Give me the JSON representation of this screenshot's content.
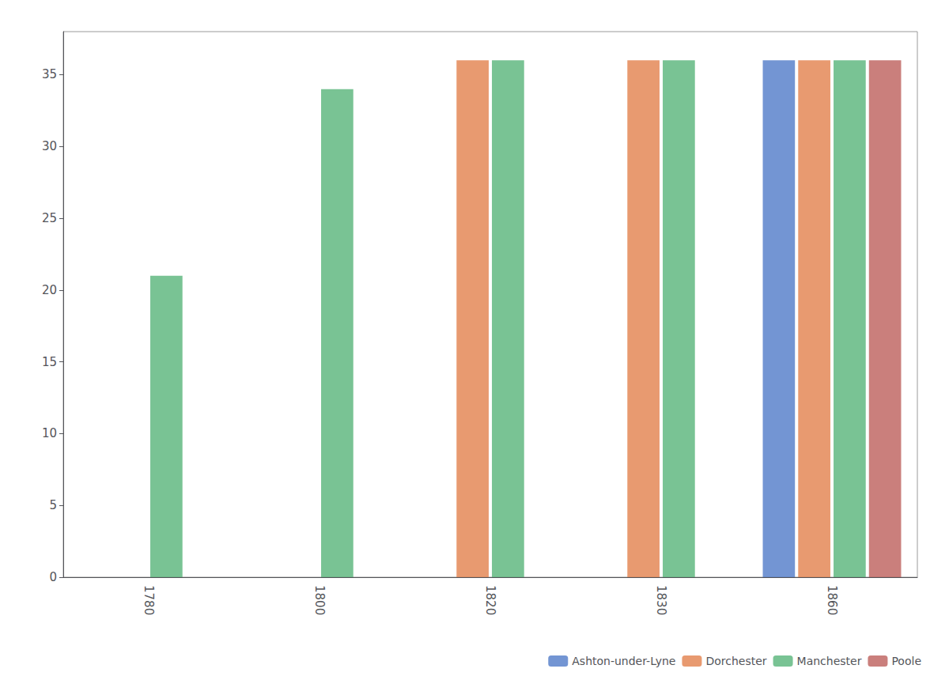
{
  "chart_data": {
    "type": "bar",
    "categories": [
      "1780",
      "1800",
      "1820",
      "1830",
      "1860"
    ],
    "series": [
      {
        "name": "Ashton-under-Lyne",
        "color": "#4472C4",
        "values": [
          0,
          0,
          0,
          0,
          36
        ]
      },
      {
        "name": "Dorchester",
        "color": "#E07840",
        "values": [
          0,
          0,
          36,
          36,
          36
        ]
      },
      {
        "name": "Manchester",
        "color": "#4CAF70",
        "values": [
          21,
          34,
          36,
          36,
          36
        ]
      },
      {
        "name": "Poole",
        "color": "#B85450",
        "values": [
          0,
          0,
          0,
          0,
          36
        ]
      }
    ],
    "ylim": [
      0,
      38
    ],
    "yticks": [
      0,
      5,
      10,
      15,
      20,
      25,
      30,
      35
    ],
    "grid": false,
    "legend": "lower right"
  }
}
